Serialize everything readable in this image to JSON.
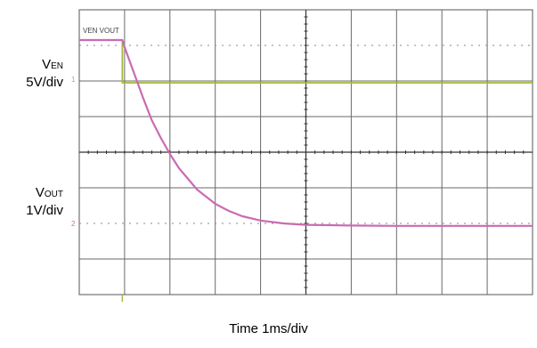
{
  "chart_data": {
    "type": "line",
    "title": "",
    "x_divisions": 10,
    "y_divisions": 8,
    "xlim": [
      0,
      10
    ],
    "ylim": [
      0,
      8
    ],
    "grid": true,
    "grid_dotted_center_rows": [
      1,
      6
    ],
    "xlabel": "Time 1ms/div",
    "header_marks": "VEN VOUT",
    "series": [
      {
        "name": "VEN",
        "label_main": "V",
        "label_sub": "EN",
        "scale": "5V/div",
        "color": "#a6b83a",
        "marker": "1",
        "x": [
          0,
          0.95,
          0.95,
          10
        ],
        "y_div": [
          7.15,
          7.15,
          5.95,
          5.95
        ]
      },
      {
        "name": "VOUT",
        "label_main": "V",
        "label_sub": "OUT",
        "scale": "1V/div",
        "color": "#c96bb3",
        "marker": "2",
        "x": [
          0,
          0.95,
          1.0,
          1.2,
          1.4,
          1.6,
          1.8,
          2.0,
          2.2,
          2.4,
          2.6,
          2.8,
          3.0,
          3.3,
          3.6,
          4.0,
          4.5,
          5.0,
          6.0,
          7.0,
          8.0,
          9.0,
          10.0
        ],
        "y_div": [
          7.15,
          7.15,
          6.95,
          6.25,
          5.55,
          4.9,
          4.4,
          3.95,
          3.55,
          3.25,
          2.95,
          2.75,
          2.55,
          2.35,
          2.2,
          2.08,
          2.0,
          1.96,
          1.94,
          1.93,
          1.93,
          1.93,
          1.93
        ]
      }
    ]
  }
}
